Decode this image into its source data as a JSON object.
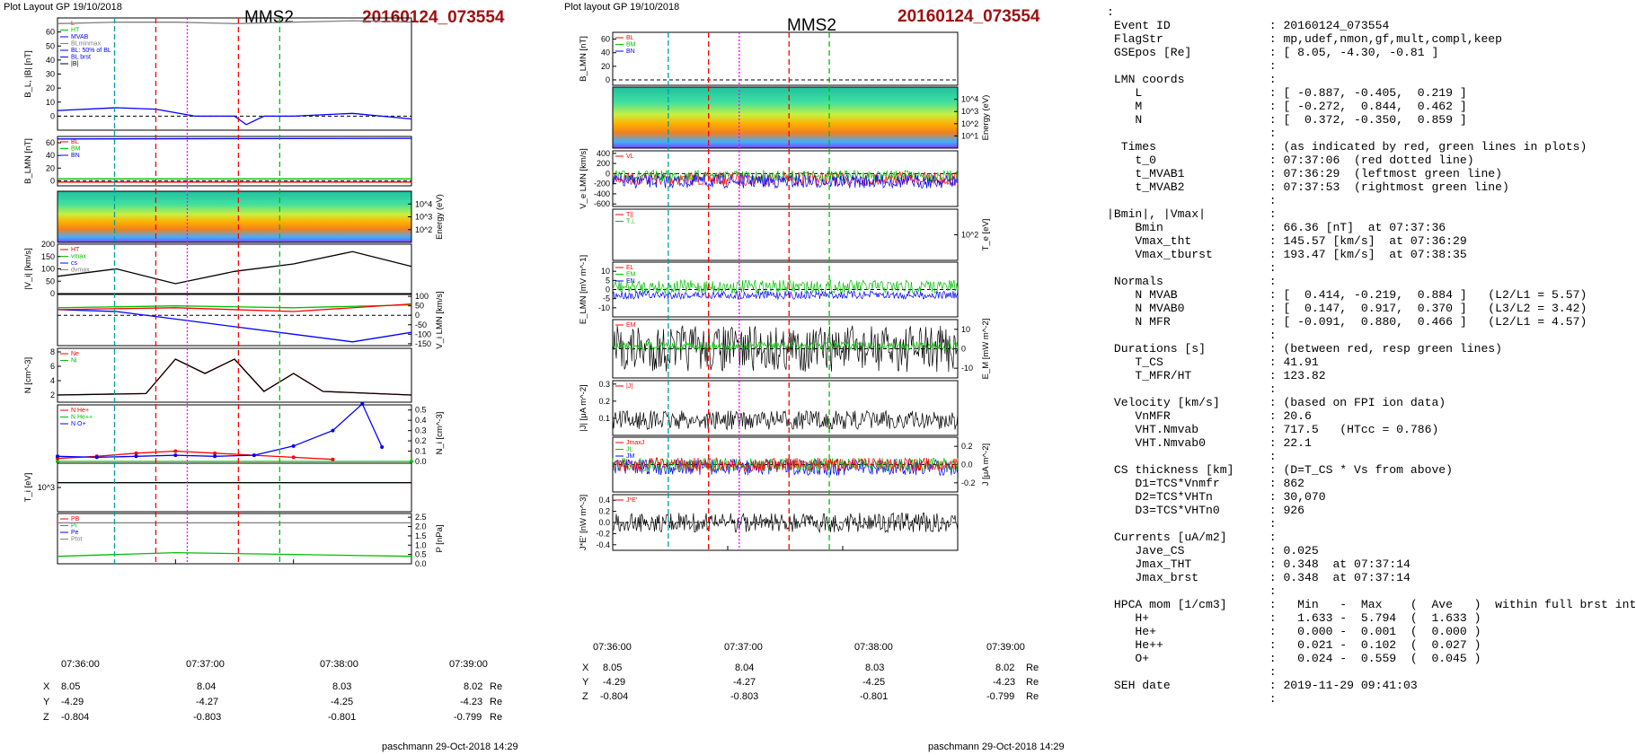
{
  "left_column": {
    "plot_layout": "Plot Layout GP 19/10/2018",
    "spacecraft": "MMS2",
    "event_id": "20160124_073554",
    "footer": "paschmann 29-Oct-2018 14:29",
    "times": [
      "07:36:00",
      "07:37:00",
      "07:38:00",
      "07:39:00"
    ],
    "coords": {
      "x": {
        "label": "X",
        "values": [
          "8.05",
          "8.04",
          "8.03",
          "8.02"
        ],
        "unit": "Re"
      },
      "y": {
        "label": "Y",
        "values": [
          "-4.29",
          "-4.27",
          "-4.25",
          "-4.23"
        ],
        "unit": "Re"
      },
      "z": {
        "label": "Z",
        "values": [
          "-0.804",
          "-0.803",
          "-0.801",
          "-0.799"
        ],
        "unit": "Re"
      }
    }
  },
  "middle_column": {
    "plot_layout": "Plot layout GP 19/10/2018",
    "spacecraft": "MMS2",
    "event_id": "20160124_073554",
    "footer": "paschmann 29-Oct-2018 14:29",
    "times": [
      "07:36:00",
      "07:37:00",
      "07:38:00",
      "07:39:00"
    ],
    "coords": {
      "x": {
        "label": "X",
        "values": [
          "8.05",
          "8.04",
          "8.03",
          "8.02"
        ],
        "unit": "Re"
      },
      "y": {
        "label": "Y",
        "values": [
          "-4.29",
          "-4.27",
          "-4.25",
          "-4.23"
        ],
        "unit": "Re"
      },
      "z": {
        "label": "Z",
        "values": [
          "-0.804",
          "-0.803",
          "-0.801",
          "-0.799"
        ],
        "unit": "Re"
      }
    }
  },
  "chart_data": [
    {
      "type": "line",
      "panel": "left-1",
      "ylabel": "B_L, |B| [nT]",
      "ylim": [
        -10,
        70
      ],
      "yticks": [
        "0",
        "10",
        "20",
        "30",
        "40",
        "50",
        "60"
      ],
      "legend": [
        "L",
        "HT",
        "MVAB",
        "BLminmax",
        "BL: 50% of BL",
        "BL brst",
        "|B|"
      ],
      "series": [
        {
          "name": "|B|",
          "color": "#808080",
          "x": [
            "07:36:00",
            "07:36:30",
            "07:37:00",
            "07:37:30",
            "07:38:00",
            "07:38:30",
            "07:39:00"
          ],
          "y": [
            66,
            67,
            67,
            66,
            67,
            68,
            67
          ]
        },
        {
          "name": "BL brst",
          "color": "#0000ff",
          "x": [
            "07:36:00",
            "07:36:30",
            "07:36:50",
            "07:37:10",
            "07:37:30",
            "07:37:36",
            "07:37:45",
            "07:38:00",
            "07:38:30",
            "07:39:00"
          ],
          "y": [
            4,
            6,
            5,
            0,
            0,
            -6,
            0,
            0,
            2,
            -2
          ]
        }
      ]
    },
    {
      "type": "line",
      "panel": "left-2",
      "ylabel": "B_LMN [nT]",
      "ylim": [
        -8,
        70
      ],
      "yticks": [
        "0",
        "20",
        "40",
        "60"
      ],
      "legend": [
        "BL",
        "BM",
        "BN"
      ],
      "series": [
        {
          "name": "BL",
          "color": "#0000ff",
          "x": [
            "07:36:00",
            "07:39:00"
          ],
          "y": [
            66,
            67
          ]
        },
        {
          "name": "BM",
          "color": "#00c000",
          "x": [
            "07:36:00",
            "07:39:00"
          ],
          "y": [
            3,
            3
          ]
        },
        {
          "name": "BN",
          "color": "#ff0000",
          "x": [
            "07:36:00",
            "07:39:00"
          ],
          "y": [
            -2,
            -2
          ]
        }
      ]
    },
    {
      "type": "heatmap",
      "panel": "left-3",
      "ylabel": "Energy (eV)",
      "yticks": [
        "10^2",
        "10^3",
        "10^4"
      ]
    },
    {
      "type": "line",
      "panel": "left-4",
      "ylabel": "|V_i| [km/s]",
      "ylim": [
        0,
        200
      ],
      "yticks": [
        "0",
        "50",
        "100",
        "150",
        "200"
      ],
      "legend": [
        "HT",
        "vmax",
        "cs",
        "dvmax"
      ],
      "series": [
        {
          "name": "|Vi|",
          "color": "#000000",
          "x": [
            "07:36:00",
            "07:36:30",
            "07:37:00",
            "07:37:30",
            "07:38:00",
            "07:38:30",
            "07:39:00"
          ],
          "y": [
            70,
            100,
            40,
            90,
            120,
            170,
            110
          ]
        }
      ]
    },
    {
      "type": "line",
      "panel": "left-5",
      "ylabel": "V_i LMN [km/s]",
      "ylim": [
        -160,
        110
      ],
      "yticks": [
        "100",
        "50",
        "0",
        "-50",
        "-100",
        "-150"
      ],
      "series": [
        {
          "name": "VL",
          "color": "#0000ff",
          "x": [
            "07:36:00",
            "07:36:30",
            "07:37:00",
            "07:37:30",
            "07:38:00",
            "07:38:30",
            "07:39:00"
          ],
          "y": [
            30,
            20,
            -20,
            -60,
            -100,
            -140,
            -90
          ]
        },
        {
          "name": "VM",
          "color": "#00c000",
          "x": [
            "07:36:00",
            "07:37:00",
            "07:38:00",
            "07:39:00"
          ],
          "y": [
            40,
            50,
            40,
            55
          ]
        },
        {
          "name": "VN",
          "color": "#ff0000",
          "x": [
            "07:36:00",
            "07:37:00",
            "07:38:00",
            "07:39:00"
          ],
          "y": [
            30,
            40,
            20,
            60
          ]
        }
      ]
    },
    {
      "type": "line",
      "panel": "left-6",
      "ylabel": "N [cm^-3]",
      "ylim": [
        1,
        8.5
      ],
      "yticks": [
        "2",
        "4",
        "6",
        "8"
      ],
      "legend": [
        "Ne",
        "Ni"
      ],
      "series": [
        {
          "name": "Ne",
          "color": "#ff0000",
          "x": [
            "07:36:00",
            "07:36:45",
            "07:37:00",
            "07:37:15",
            "07:37:30",
            "07:37:45",
            "07:38:00",
            "07:38:15",
            "07:39:00"
          ],
          "y": [
            2,
            2.2,
            7,
            5,
            7,
            2.5,
            5,
            2.5,
            2
          ]
        },
        {
          "name": "Ni",
          "color": "#000000",
          "x": [
            "07:36:00",
            "07:36:45",
            "07:37:00",
            "07:37:15",
            "07:37:30",
            "07:37:45",
            "07:38:00",
            "07:38:15",
            "07:39:00"
          ],
          "y": [
            2,
            2.2,
            7,
            5,
            7,
            2.5,
            5,
            2.5,
            2
          ]
        }
      ]
    },
    {
      "type": "line",
      "panel": "left-7",
      "ylabel": "N_i [cm^-3]",
      "ylim": [
        0,
        0.55
      ],
      "yticks": [
        "0.0",
        "0.1",
        "0.2",
        "0.3",
        "0.4",
        "0.5"
      ],
      "legend": [
        "N He+",
        "N He++",
        "N O+"
      ],
      "series": [
        {
          "name": "N He+",
          "color": "#00c000",
          "x": [
            "07:36:00",
            "07:39:00"
          ],
          "y": [
            0.0,
            0.0
          ]
        },
        {
          "name": "N He++",
          "color": "#ff0000",
          "x": [
            "07:36:00",
            "07:36:20",
            "07:36:40",
            "07:37:00",
            "07:37:20",
            "07:37:40",
            "07:38:00",
            "07:38:20"
          ],
          "y": [
            0.03,
            0.05,
            0.08,
            0.1,
            0.08,
            0.06,
            0.04,
            0.02
          ]
        },
        {
          "name": "N O+",
          "color": "#0000ff",
          "x": [
            "07:36:00",
            "07:36:20",
            "07:36:40",
            "07:37:00",
            "07:37:20",
            "07:37:40",
            "07:38:00",
            "07:38:20",
            "07:38:35",
            "07:38:45"
          ],
          "y": [
            0.05,
            0.04,
            0.05,
            0.06,
            0.05,
            0.06,
            0.15,
            0.3,
            0.56,
            0.14
          ]
        }
      ]
    },
    {
      "type": "line",
      "panel": "left-8",
      "ylabel": "T_i [eV]",
      "yticks": [
        "10^3"
      ],
      "series": [
        {
          "name": "T||",
          "color": "#ff0000",
          "x": [
            "07:36:00",
            "07:39:00"
          ],
          "y": [
            3000,
            3000
          ]
        },
        {
          "name": "T⊥",
          "color": "#000000",
          "x": [
            "07:36:00",
            "07:39:00"
          ],
          "y": [
            3000,
            3000
          ]
        }
      ]
    },
    {
      "type": "line",
      "panel": "left-9",
      "ylabel": "P [nPa]",
      "ylim": [
        0,
        2.7
      ],
      "yticks": [
        "0.0",
        "0.5",
        "1.0",
        "1.5",
        "2.0",
        "2.5"
      ],
      "legend": [
        "PB",
        "Pi",
        "Pe",
        "Ptot"
      ],
      "series": [
        {
          "name": "Ptot",
          "color": "#808080",
          "x": [
            "07:36:00",
            "07:39:00"
          ],
          "y": [
            2.2,
            2.2
          ]
        },
        {
          "name": "Pi",
          "color": "#00c000",
          "x": [
            "07:36:00",
            "07:37:00",
            "07:38:00",
            "07:39:00"
          ],
          "y": [
            0.4,
            0.6,
            0.5,
            0.4
          ]
        }
      ]
    },
    {
      "type": "line",
      "panel": "mid-1",
      "ylabel": "B_LMN [nT]",
      "ylim": [
        -8,
        70
      ],
      "yticks": [
        "0",
        "20",
        "40",
        "60"
      ],
      "legend": [
        "BL",
        "BM",
        "BN"
      ]
    },
    {
      "type": "heatmap",
      "panel": "mid-2",
      "ylabel": "Energy (eV)",
      "yticks": [
        "10^1",
        "10^2",
        "10^3",
        "10^4"
      ]
    },
    {
      "type": "line",
      "panel": "mid-3",
      "ylabel": "V_e LMN [km/s]",
      "ylim": [
        -650,
        450
      ],
      "yticks": [
        "400",
        "200",
        "0",
        "-200",
        "-400",
        "-600"
      ],
      "legend": [
        "VL"
      ]
    },
    {
      "type": "line",
      "panel": "mid-4",
      "ylabel": "T_e [eV]",
      "yticks": [
        "10^2"
      ],
      "legend": [
        "T||",
        "T⊥"
      ]
    },
    {
      "type": "line",
      "panel": "mid-5",
      "ylabel": "E_LMN [mV m^-1]",
      "ylim": [
        -15,
        15
      ],
      "yticks": [
        "10",
        "5",
        "0",
        "-5",
        "-10"
      ],
      "legend": [
        "EL",
        "EM",
        "EN"
      ]
    },
    {
      "type": "line",
      "panel": "mid-6",
      "ylabel": "E_M [mW m^-2]",
      "ylim": [
        -15,
        15
      ],
      "yticks": [
        "10",
        "0",
        "-10"
      ],
      "legend": [
        "EM"
      ]
    },
    {
      "type": "line",
      "panel": "mid-7",
      "ylabel": "|J| [μA m^-2]",
      "ylim": [
        0,
        0.32
      ],
      "yticks": [
        "0.1",
        "0.2",
        "0.3"
      ],
      "legend": [
        "|J|"
      ]
    },
    {
      "type": "line",
      "panel": "mid-8",
      "ylabel": "J [μA m^-2]",
      "ylim": [
        -0.3,
        0.3
      ],
      "yticks": [
        "0.2",
        "0.0",
        "-0.2"
      ],
      "legend": [
        "JmaxJ",
        "JL",
        "JM"
      ]
    },
    {
      "type": "line",
      "panel": "mid-9",
      "ylabel": "J*E' [nW m^-3]",
      "ylim": [
        -0.5,
        0.5
      ],
      "yticks": [
        "0.4",
        "0.2",
        "0.0",
        "-0.2",
        "-0.4"
      ],
      "legend": [
        "J*E'"
      ]
    }
  ],
  "info_panel": {
    "lines": [
      ":",
      " Event ID              : 20160124_073554",
      " FlagStr               : mp,udef,nmon,gf,mult,compl,keep",
      " GSEpos [Re]           : [ 8.05, -4.30, -0.81 ]",
      "                       :",
      " LMN coords            :",
      "    L                  : [ -0.887, -0.405,  0.219 ]",
      "    M                  : [ -0.272,  0.844,  0.462 ]",
      "    N                  : [  0.372, -0.350,  0.859 ]",
      "                       :",
      "  Times                : (as indicated by red, green lines in plots)",
      "    t_0                : 07:37:06  (red dotted line)",
      "    t_MVAB1            : 07:36:29  (leftmost green line)",
      "    t_MVAB2            : 07:37:53  (rightmost green line)",
      "                       :",
      "|Bmin|, |Vmax|         :",
      "    Bmin               : 66.36 [nT]  at 07:37:36",
      "    Vmax_tht           : 145.57 [km/s]  at 07:36:29",
      "    Vmax_tburst        : 193.47 [km/s]  at 07:38:35",
      "                       :",
      " Normals               :",
      "    N MVAB             : [  0.414, -0.219,  0.884 ]   (L2/L1 = 5.57)",
      "    N MVAB0            : [  0.147,  0.917,  0.370 ]   (L3/L2 = 3.42)",
      "    N MFR              : [ -0.091,  0.880,  0.466 ]   (L2/L1 = 4.57)",
      "                       :",
      " Durations [s]         : (between red, resp green lines)",
      "    T_CS               : 41.91",
      "    T_MFR/HT           : 123.82",
      "                       :",
      " Velocity [km/s]       : (based on FPI ion data)",
      "    VnMFR              : 20.6",
      "    VHT.Nmvab          : 717.5   (HTcc = 0.786)",
      "    VHT.Nmvab0         : 22.1",
      "                       :",
      " CS thickness [km]     : (D=T_CS * Vs from above)",
      "    D1=TCS*Vnmfr       : 862",
      "    D2=TCS*VHTn        : 30,070",
      "    D3=TCS*VHTn0       : 926",
      "                       :",
      " Currents [uA/m2]      :",
      "    Jave_CS            : 0.025",
      "    Jmax_THT           : 0.348  at 07:37:14",
      "    Jmax_brst          : 0.348  at 07:37:14",
      "                       :",
      " HPCA mom [1/cm3]      :   Min   -  Max    (  Ave   )  within full brst int",
      "    H+                 :   1.633 -  5.794  (  1.633 )",
      "    He+                :   0.000 -  0.001  (  0.000 )",
      "    He++               :   0.021 -  0.102  (  0.027 )",
      "    O+                 :   0.024 -  0.559  (  0.045 )",
      "                       :",
      " SEH date              : 2019-11-29 09:41:03",
      "                       :"
    ]
  },
  "colors": {
    "event_id": "#a01010",
    "red": "#ff0000",
    "green": "#00c000",
    "blue": "#0000ff",
    "magenta": "#ff00ff",
    "gray": "#808080"
  }
}
